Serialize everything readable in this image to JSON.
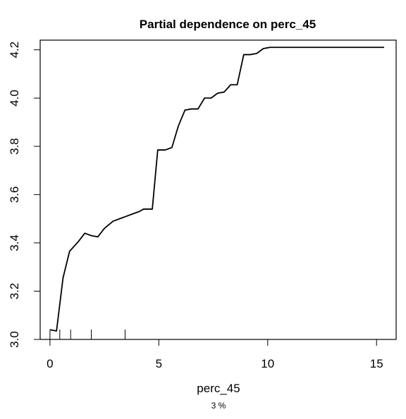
{
  "chart_data": {
    "type": "line",
    "title": "Partial dependence on perc_45",
    "xlabel": "perc_45",
    "ylabel": "",
    "sub_label": "3 %",
    "xlim": [
      -0.45,
      15.9
    ],
    "ylim": [
      3.0,
      4.24
    ],
    "x_ticks": [
      0,
      5,
      10,
      15
    ],
    "y_ticks": [
      3.0,
      3.2,
      3.4,
      3.6,
      3.8,
      4.0,
      4.2
    ],
    "grid": false,
    "series": [
      {
        "color": "#000000",
        "x": [
          0.0,
          0.3,
          0.6,
          0.9,
          1.3,
          1.6,
          1.9,
          2.2,
          2.5,
          2.9,
          3.2,
          3.5,
          3.8,
          4.1,
          4.3,
          4.7,
          4.95,
          5.3,
          5.6,
          5.9,
          6.2,
          6.5,
          6.8,
          7.1,
          7.4,
          7.7,
          8.0,
          8.3,
          8.6,
          8.9,
          9.2,
          9.5,
          9.8,
          10.1,
          10.6,
          11.0,
          11.5,
          12.0,
          12.5,
          13.0,
          13.5,
          14.0,
          14.5,
          15.0,
          15.35
        ],
        "values": [
          3.04,
          3.035,
          3.255,
          3.365,
          3.405,
          3.44,
          3.43,
          3.425,
          3.46,
          3.49,
          3.5,
          3.51,
          3.52,
          3.53,
          3.54,
          3.54,
          3.785,
          3.785,
          3.795,
          3.885,
          3.95,
          3.955,
          3.955,
          4.0,
          4.0,
          4.02,
          4.025,
          4.055,
          4.055,
          4.18,
          4.18,
          4.185,
          4.205,
          4.21,
          4.21,
          4.21,
          4.21,
          4.21,
          4.21,
          4.21,
          4.21,
          4.21,
          4.21,
          4.21,
          4.21
        ]
      }
    ],
    "rug": [
      0.0,
      0.45,
      0.95,
      1.9,
      3.45
    ]
  }
}
